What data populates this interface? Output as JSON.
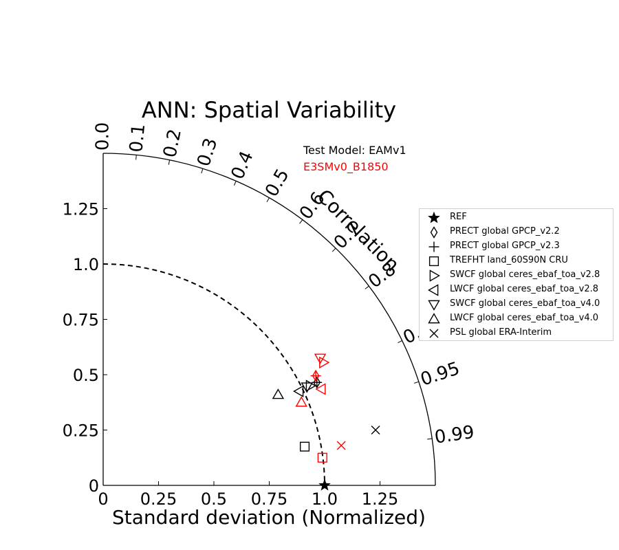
{
  "chart_data": {
    "type": "scatter",
    "diagram": "taylor",
    "title": "ANN: Spatial Variability",
    "xlabel": "Standard deviation (Normalized)",
    "ylabel": "",
    "arc_label": "Correlation",
    "xlim": [
      0,
      1.5
    ],
    "ylim": [
      0,
      1.5
    ],
    "std_ticks": [
      0,
      0.25,
      0.5,
      0.75,
      1.0,
      1.25
    ],
    "std_tick_labels": [
      "0",
      "0.25",
      "0.5",
      "0.75",
      "1.0",
      "1.25"
    ],
    "correlation_ticks": [
      0.0,
      0.1,
      0.2,
      0.3,
      0.4,
      0.5,
      0.6,
      0.7,
      0.8,
      0.9,
      0.95,
      0.99
    ],
    "correlation_tick_labels": [
      "0.0",
      "0.1",
      "0.2",
      "0.3",
      "0.4",
      "0.5",
      "0.6",
      "0.7",
      "0.8",
      "0.9",
      "0.95",
      "0.99"
    ],
    "reference_std": 1.0,
    "grid": false,
    "legend_position": "right",
    "models": [
      {
        "name": "Test Model: EAMv1",
        "color": "#000000"
      },
      {
        "name": "E3SMv0_B1850",
        "color": "#ff0000"
      }
    ],
    "variables": [
      {
        "key": "REF",
        "label": "REF",
        "marker": "star"
      },
      {
        "key": "PRECT_v22",
        "label": "PRECT global GPCP_v2.2",
        "marker": "diamond"
      },
      {
        "key": "PRECT_v23",
        "label": "PRECT global GPCP_v2.3",
        "marker": "plus"
      },
      {
        "key": "TREFHT",
        "label": "TREFHT land_60S90N CRU",
        "marker": "square"
      },
      {
        "key": "SWCF_v28",
        "label": "SWCF global ceres_ebaf_toa_v2.8",
        "marker": "tri-right"
      },
      {
        "key": "LWCF_v28",
        "label": "LWCF global ceres_ebaf_toa_v2.8",
        "marker": "tri-left"
      },
      {
        "key": "SWCF_v40",
        "label": "SWCF global ceres_ebaf_toa_v4.0",
        "marker": "tri-down"
      },
      {
        "key": "LWCF_v40",
        "label": "LWCF global ceres_ebaf_toa_v4.0",
        "marker": "tri-up"
      },
      {
        "key": "PSL",
        "label": "PSL global ERA-Interim",
        "marker": "x"
      }
    ],
    "points": [
      {
        "var": "REF",
        "model": 0,
        "x": 1.0,
        "y": 0.0
      },
      {
        "var": "PRECT_v22",
        "model": 0,
        "x": 0.965,
        "y": 0.465
      },
      {
        "var": "PRECT_v23",
        "model": 0,
        "x": 0.965,
        "y": 0.465
      },
      {
        "var": "TREFHT",
        "model": 0,
        "x": 0.91,
        "y": 0.175
      },
      {
        "var": "SWCF_v28",
        "model": 0,
        "x": 0.935,
        "y": 0.45
      },
      {
        "var": "LWCF_v28",
        "model": 0,
        "x": 0.885,
        "y": 0.425
      },
      {
        "var": "SWCF_v40",
        "model": 0,
        "x": 0.92,
        "y": 0.445
      },
      {
        "var": "LWCF_v40",
        "model": 0,
        "x": 0.79,
        "y": 0.41
      },
      {
        "var": "PSL",
        "model": 0,
        "x": 1.23,
        "y": 0.25
      },
      {
        "var": "PRECT_v22",
        "model": 1,
        "x": 0.96,
        "y": 0.495
      },
      {
        "var": "PRECT_v23",
        "model": 1,
        "x": 0.96,
        "y": 0.495
      },
      {
        "var": "TREFHT",
        "model": 1,
        "x": 0.99,
        "y": 0.125
      },
      {
        "var": "SWCF_v28",
        "model": 1,
        "x": 0.995,
        "y": 0.555
      },
      {
        "var": "LWCF_v28",
        "model": 1,
        "x": 0.985,
        "y": 0.435
      },
      {
        "var": "SWCF_v40",
        "model": 1,
        "x": 0.98,
        "y": 0.575
      },
      {
        "var": "LWCF_v40",
        "model": 1,
        "x": 0.895,
        "y": 0.375
      },
      {
        "var": "PSL",
        "model": 1,
        "x": 1.075,
        "y": 0.18
      }
    ]
  }
}
